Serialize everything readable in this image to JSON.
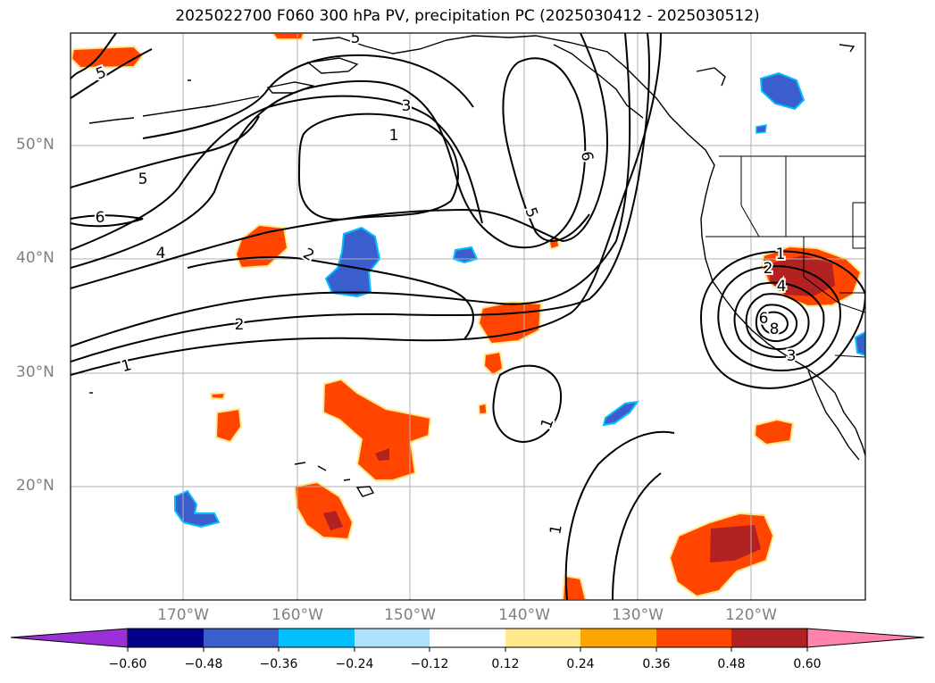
{
  "title": "2025022700 F060 300 hPa PV, precipitation PC (2025030412 - 2025030512)",
  "map": {
    "lat_labels": [
      "50°N",
      "40°N",
      "30°N",
      "20°N"
    ],
    "lon_labels": [
      "170°W",
      "160°W",
      "150°W",
      "140°W",
      "130°W",
      "120°W"
    ],
    "pv_contour_labels": [
      "5",
      "5",
      "5",
      "6",
      "4",
      "3",
      "1",
      "6",
      "5",
      "2",
      "2",
      "1",
      "1",
      "1",
      "1",
      "2",
      "4",
      "6",
      "8",
      "3"
    ],
    "colors": {
      "coast": "#000000",
      "contour": "#000000",
      "grid": "#b0b0b0"
    }
  },
  "colorbar": {
    "ticks": [
      "−0.60",
      "−0.48",
      "−0.36",
      "−0.24",
      "−0.12",
      "0.12",
      "0.24",
      "0.36",
      "0.48",
      "0.60"
    ],
    "colors": [
      "#9b30d6",
      "#00008b",
      "#3a5fcd",
      "#00bfff",
      "#b0e2ff",
      "#ffffff",
      "#ffe98c",
      "#ffa500",
      "#ff4500",
      "#b22222",
      "#ff82ab"
    ]
  }
}
